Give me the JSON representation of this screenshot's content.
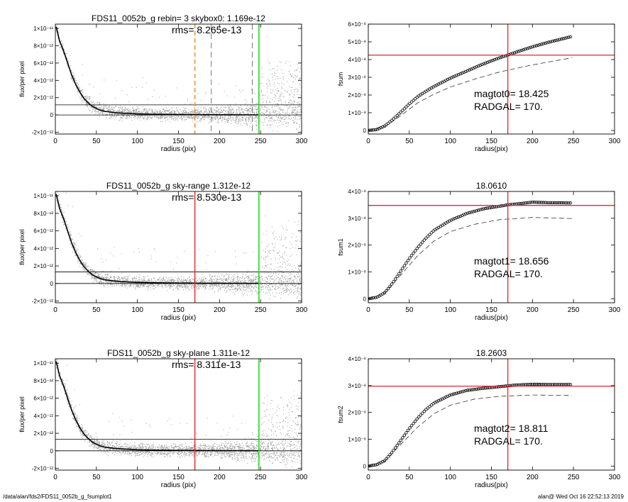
{
  "footer": {
    "path": "/data/alan/fds2/FDS11_0052b_g_fsumplot1",
    "stamp": "alan@  Wed Oct 16 22:52:13 2019"
  },
  "colors": {
    "axes": "#000000",
    "scatter": "#9a9a9a",
    "profile": "#000000",
    "red": "#e8242a",
    "green": "#22dd22",
    "orange": "#e88a2a",
    "dash": "#555555"
  },
  "chart_data": [
    {
      "type": "scatter",
      "panel": "left",
      "title": "FDS11_0052b_g rebin= 3    skybox0:  1.169e-12",
      "rms_label": "rms= 8.265e-13",
      "xlabel": "radius (pix)",
      "ylabel": "flux/per pixel",
      "xlim": [
        0,
        300
      ],
      "ylim": [
        -2.2e-12,
        1.05e-11
      ],
      "xticks": [
        0,
        50,
        100,
        150,
        200,
        250,
        300
      ],
      "yticks": [
        {
          "v": -2e-12,
          "label": "-2×10⁻¹²"
        },
        {
          "v": 0,
          "label": "0"
        },
        {
          "v": 2e-12,
          "label": "2×10⁻¹²"
        },
        {
          "v": 4e-12,
          "label": "4×10⁻¹²"
        },
        {
          "v": 6e-12,
          "label": "6×10⁻¹²"
        },
        {
          "v": 8e-12,
          "label": "8×10⁻¹²"
        },
        {
          "v": 1e-11,
          "label": "1×10⁻¹¹"
        }
      ],
      "sky_level": 1.169e-12,
      "vlines": [
        {
          "x": 170,
          "style": "orange-dash"
        },
        {
          "x": 190,
          "style": "grey-dash"
        },
        {
          "x": 240,
          "style": "grey-dash"
        },
        {
          "x": 248,
          "style": "green"
        }
      ],
      "profile": [
        [
          1,
          10.2
        ],
        [
          5,
          8.6
        ],
        [
          10,
          7.4
        ],
        [
          15,
          6.0
        ],
        [
          20,
          4.6
        ],
        [
          25,
          3.5
        ],
        [
          30,
          2.6
        ],
        [
          35,
          1.9
        ],
        [
          40,
          1.4
        ],
        [
          45,
          1.0
        ],
        [
          50,
          0.75
        ],
        [
          55,
          0.55
        ],
        [
          60,
          0.42
        ],
        [
          70,
          0.3
        ],
        [
          80,
          0.22
        ],
        [
          100,
          0.12
        ],
        [
          120,
          0.08
        ],
        [
          150,
          0.05
        ],
        [
          180,
          0.03
        ],
        [
          220,
          0.02
        ],
        [
          248,
          0.01
        ]
      ],
      "seed": 11
    },
    {
      "type": "line",
      "panel": "right",
      "title": "",
      "xlabel": "radius(pix)",
      "ylabel": "fsum",
      "xlim": [
        0,
        300
      ],
      "ylim": [
        -2e-09,
        6e-08
      ],
      "xticks": [
        0,
        50,
        100,
        150,
        200,
        250,
        300
      ],
      "yticks": [
        {
          "v": 0,
          "label": "0"
        },
        {
          "v": 1e-08,
          "label": "1×10⁻⁸"
        },
        {
          "v": 2e-08,
          "label": "2×10⁻⁸"
        },
        {
          "v": 3e-08,
          "label": "3×10⁻⁸"
        },
        {
          "v": 4e-08,
          "label": "4×10⁻⁸"
        },
        {
          "v": 5e-08,
          "label": "5×10⁻⁸"
        },
        {
          "v": 6e-08,
          "label": "6×10⁻⁸"
        }
      ],
      "hline": 4.25e-08,
      "vline": 170,
      "series_main": [
        [
          0,
          0
        ],
        [
          10,
          0.05
        ],
        [
          20,
          0.25
        ],
        [
          30,
          0.62
        ],
        [
          40,
          1.05
        ],
        [
          50,
          1.5
        ],
        [
          60,
          1.9
        ],
        [
          70,
          2.2
        ],
        [
          80,
          2.48
        ],
        [
          100,
          2.95
        ],
        [
          120,
          3.35
        ],
        [
          140,
          3.75
        ],
        [
          160,
          4.1
        ],
        [
          170,
          4.25
        ],
        [
          180,
          4.42
        ],
        [
          200,
          4.72
        ],
        [
          220,
          4.98
        ],
        [
          248,
          5.3
        ]
      ],
      "series_dashed": [
        [
          0,
          0
        ],
        [
          20,
          0.2
        ],
        [
          40,
          0.85
        ],
        [
          60,
          1.55
        ],
        [
          80,
          2.05
        ],
        [
          100,
          2.45
        ],
        [
          130,
          2.9
        ],
        [
          160,
          3.3
        ],
        [
          200,
          3.7
        ],
        [
          248,
          4.1
        ]
      ],
      "note_lines": [
        "magtot0=  18.425",
        "RADGAL=    170."
      ]
    },
    {
      "type": "scatter",
      "panel": "left",
      "title": "FDS11_0052b_g sky-range  1.312e-12",
      "rms_label": "rms= 8.530e-13",
      "xlabel": "radius (pix)",
      "ylabel": "flux/per pixel",
      "xlim": [
        0,
        300
      ],
      "ylim": [
        -2.2e-12,
        1.05e-11
      ],
      "xticks": [
        0,
        50,
        100,
        150,
        200,
        250,
        300
      ],
      "yticks": [
        {
          "v": -2e-12,
          "label": "-2×10⁻¹²"
        },
        {
          "v": 0,
          "label": "0"
        },
        {
          "v": 2e-12,
          "label": "2×10⁻¹²"
        },
        {
          "v": 4e-12,
          "label": "4×10⁻¹²"
        },
        {
          "v": 6e-12,
          "label": "6×10⁻¹²"
        },
        {
          "v": 8e-12,
          "label": "8×10⁻¹²"
        },
        {
          "v": 1e-11,
          "label": "1×10⁻¹¹"
        }
      ],
      "sky_level": 1.312e-12,
      "vlines": [
        {
          "x": 170,
          "style": "red"
        },
        {
          "x": 248,
          "style": "green"
        }
      ],
      "profile": [
        [
          1,
          10.2
        ],
        [
          5,
          8.6
        ],
        [
          10,
          7.4
        ],
        [
          15,
          6.0
        ],
        [
          20,
          4.6
        ],
        [
          25,
          3.5
        ],
        [
          30,
          2.6
        ],
        [
          35,
          1.9
        ],
        [
          40,
          1.4
        ],
        [
          45,
          1.0
        ],
        [
          50,
          0.75
        ],
        [
          55,
          0.55
        ],
        [
          60,
          0.42
        ],
        [
          70,
          0.3
        ],
        [
          80,
          0.22
        ],
        [
          100,
          0.12
        ],
        [
          120,
          0.08
        ],
        [
          150,
          0.05
        ],
        [
          180,
          0.03
        ],
        [
          220,
          0.02
        ],
        [
          248,
          0.01
        ]
      ],
      "seed": 23
    },
    {
      "type": "line",
      "panel": "right",
      "title": "18.0610",
      "xlabel": "radius(pix)",
      "ylabel": "fsum1",
      "xlim": [
        0,
        300
      ],
      "ylim": [
        -1.5e-09,
        4e-08
      ],
      "xticks": [
        0,
        50,
        100,
        150,
        200,
        250,
        300
      ],
      "yticks": [
        {
          "v": 0,
          "label": "0"
        },
        {
          "v": 1e-08,
          "label": "1×10⁻⁸"
        },
        {
          "v": 2e-08,
          "label": "2×10⁻⁸"
        },
        {
          "v": 3e-08,
          "label": "3×10⁻⁸"
        },
        {
          "v": 4e-08,
          "label": "4×10⁻⁸"
        }
      ],
      "hline": 3.48e-08,
      "vline": 170,
      "series_main": [
        [
          0,
          0
        ],
        [
          10,
          0.05
        ],
        [
          20,
          0.22
        ],
        [
          30,
          0.6
        ],
        [
          40,
          1.05
        ],
        [
          50,
          1.5
        ],
        [
          60,
          1.9
        ],
        [
          70,
          2.25
        ],
        [
          80,
          2.55
        ],
        [
          100,
          2.92
        ],
        [
          120,
          3.18
        ],
        [
          140,
          3.35
        ],
        [
          160,
          3.45
        ],
        [
          170,
          3.5
        ],
        [
          180,
          3.53
        ],
        [
          200,
          3.6
        ],
        [
          220,
          3.58
        ],
        [
          248,
          3.57
        ]
      ],
      "series_dashed": [
        [
          0,
          0
        ],
        [
          20,
          0.2
        ],
        [
          40,
          0.9
        ],
        [
          60,
          1.6
        ],
        [
          80,
          2.15
        ],
        [
          100,
          2.5
        ],
        [
          130,
          2.78
        ],
        [
          160,
          2.95
        ],
        [
          200,
          3.03
        ],
        [
          248,
          2.99
        ]
      ],
      "note_lines": [
        "magtot1=  18.656",
        "RADGAL=    170."
      ]
    },
    {
      "type": "scatter",
      "panel": "left",
      "title": "FDS11_0052b_g sky-plane  1.311e-12",
      "rms_label": "rms= 8.311e-13",
      "xlabel": "radius (pix)",
      "ylabel": "flux/per pixel",
      "xlim": [
        0,
        300
      ],
      "ylim": [
        -2.2e-12,
        1.05e-11
      ],
      "xticks": [
        0,
        50,
        100,
        150,
        200,
        250,
        300
      ],
      "yticks": [
        {
          "v": -2e-12,
          "label": "-2×10⁻¹²"
        },
        {
          "v": 0,
          "label": "0"
        },
        {
          "v": 2e-12,
          "label": "2×10⁻¹²"
        },
        {
          "v": 4e-12,
          "label": "4×10⁻¹²"
        },
        {
          "v": 6e-12,
          "label": "6×10⁻¹²"
        },
        {
          "v": 8e-12,
          "label": "8×10⁻¹²"
        },
        {
          "v": 1e-11,
          "label": "1×10⁻¹¹"
        }
      ],
      "sky_level": 1.311e-12,
      "vlines": [
        {
          "x": 170,
          "style": "red"
        },
        {
          "x": 248,
          "style": "green"
        }
      ],
      "profile": [
        [
          1,
          10.2
        ],
        [
          5,
          8.6
        ],
        [
          10,
          7.4
        ],
        [
          15,
          6.0
        ],
        [
          20,
          4.6
        ],
        [
          25,
          3.5
        ],
        [
          30,
          2.6
        ],
        [
          35,
          1.9
        ],
        [
          40,
          1.4
        ],
        [
          45,
          1.0
        ],
        [
          50,
          0.75
        ],
        [
          55,
          0.55
        ],
        [
          60,
          0.42
        ],
        [
          70,
          0.3
        ],
        [
          80,
          0.22
        ],
        [
          100,
          0.12
        ],
        [
          120,
          0.08
        ],
        [
          150,
          0.05
        ],
        [
          180,
          0.03
        ],
        [
          220,
          0.02
        ],
        [
          248,
          0.01
        ]
      ],
      "seed": 37
    },
    {
      "type": "line",
      "panel": "right",
      "title": "18.2603",
      "xlabel": "radius(pix)",
      "ylabel": "fsum2",
      "xlim": [
        0,
        300
      ],
      "ylim": [
        -1.5e-09,
        4e-08
      ],
      "xticks": [
        0,
        50,
        100,
        150,
        200,
        250,
        300
      ],
      "yticks": [
        {
          "v": 0,
          "label": "0"
        },
        {
          "v": 1e-08,
          "label": "1×10⁻⁸"
        },
        {
          "v": 2e-08,
          "label": "2×10⁻⁸"
        },
        {
          "v": 3e-08,
          "label": "3×10⁻⁸"
        },
        {
          "v": 4e-08,
          "label": "4×10⁻⁸"
        }
      ],
      "hline": 2.98e-08,
      "vline": 170,
      "series_main": [
        [
          0,
          0
        ],
        [
          10,
          0.05
        ],
        [
          20,
          0.2
        ],
        [
          30,
          0.55
        ],
        [
          40,
          0.98
        ],
        [
          50,
          1.4
        ],
        [
          60,
          1.78
        ],
        [
          70,
          2.1
        ],
        [
          80,
          2.35
        ],
        [
          100,
          2.65
        ],
        [
          120,
          2.82
        ],
        [
          140,
          2.9
        ],
        [
          160,
          2.96
        ],
        [
          170,
          2.99
        ],
        [
          180,
          3.02
        ],
        [
          200,
          3.05
        ],
        [
          220,
          3.04
        ],
        [
          248,
          3.04
        ]
      ],
      "series_dashed": [
        [
          0,
          0
        ],
        [
          20,
          0.18
        ],
        [
          40,
          0.82
        ],
        [
          60,
          1.45
        ],
        [
          80,
          1.95
        ],
        [
          100,
          2.27
        ],
        [
          130,
          2.5
        ],
        [
          160,
          2.6
        ],
        [
          200,
          2.65
        ],
        [
          248,
          2.63
        ]
      ],
      "note_lines": [
        "magtot2=  18.811",
        "RADGAL=    170."
      ]
    }
  ]
}
